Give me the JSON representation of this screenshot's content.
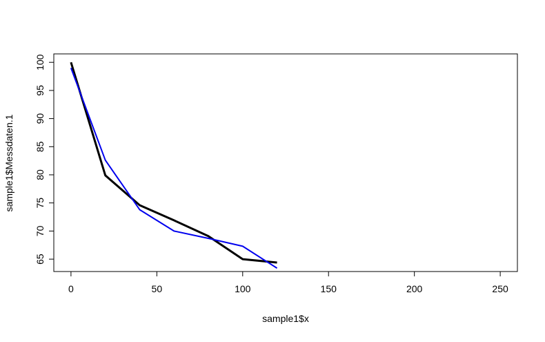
{
  "chart_data": {
    "type": "line",
    "x_label": "sample1$x",
    "y_label": "sample1$Messdaten.1",
    "x": [
      0,
      20,
      40,
      60,
      80,
      100,
      120
    ],
    "series": [
      {
        "color": "#000000",
        "width": 3,
        "values": [
          100,
          79.9,
          74.6,
          71.9,
          69.1,
          65,
          64.4
        ]
      },
      {
        "color": "#0000ee",
        "width": 2,
        "values": [
          99,
          82.6,
          73.8,
          70,
          68.7,
          67.3,
          63.4
        ]
      }
    ],
    "xlim": [
      -10,
      260
    ],
    "xticks": [
      0,
      50,
      100,
      150,
      200,
      250
    ],
    "ylim": [
      62.8,
      101.5
    ],
    "yticks": [
      65,
      70,
      75,
      80,
      85,
      90,
      95,
      100
    ]
  }
}
